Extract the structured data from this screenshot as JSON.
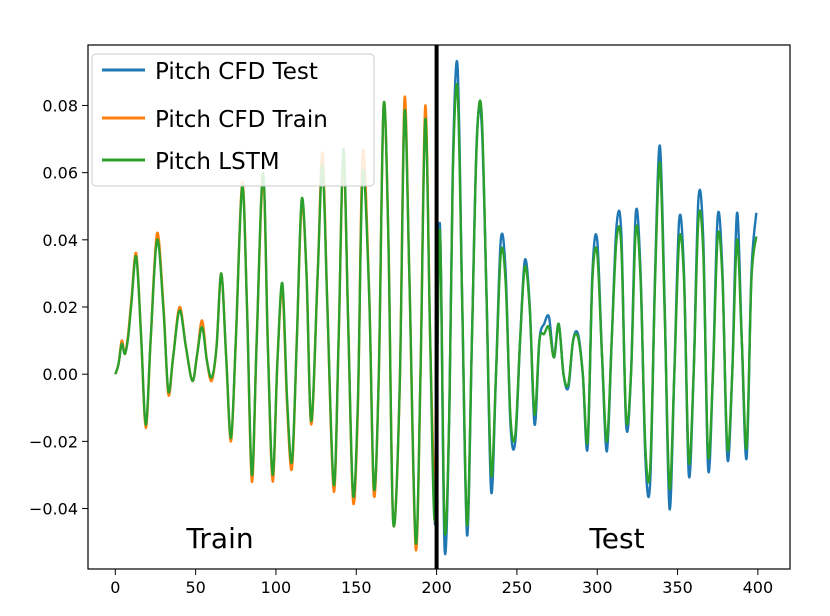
{
  "chart_data": {
    "type": "line",
    "title": "",
    "xlabel": "",
    "ylabel": "",
    "xlim": [
      -17,
      420
    ],
    "ylim": [
      -0.058,
      0.098
    ],
    "x_ticks": [
      0,
      50,
      100,
      150,
      200,
      250,
      300,
      350,
      400
    ],
    "y_ticks": [
      -0.04,
      -0.02,
      0.0,
      0.02,
      0.04,
      0.06,
      0.08
    ],
    "x_tick_labels": [
      "0",
      "50",
      "100",
      "150",
      "200",
      "250",
      "300",
      "350",
      "400"
    ],
    "y_tick_labels": [
      "−0.04",
      "−0.02",
      "0.00",
      "0.02",
      "0.04",
      "0.06",
      "0.08"
    ],
    "split_x": 200,
    "region_labels": {
      "train": "Train",
      "test": "Test"
    },
    "legend": [
      "Pitch CFD Test",
      "Pitch CFD Train",
      "Pitch LSTM"
    ],
    "colors": {
      "test": "#1f77b4",
      "train": "#ff7f0e",
      "lstm": "#2ca02c",
      "split": "#000000"
    },
    "series": [
      {
        "name": "Pitch CFD Train",
        "key": "train",
        "x": [
          0,
          2,
          4,
          6,
          8,
          10,
          13,
          16,
          19,
          22,
          26,
          30,
          33,
          36,
          40,
          44,
          48,
          51,
          54,
          57,
          60,
          63,
          66,
          69,
          72,
          75,
          79,
          82,
          85,
          88,
          92,
          95,
          98,
          101,
          104,
          107,
          110,
          113,
          116,
          119,
          122,
          126,
          129,
          132,
          136,
          139,
          142,
          145,
          148,
          151,
          154,
          158,
          161,
          164,
          167,
          170,
          173,
          177,
          180,
          183,
          187,
          190,
          193,
          196,
          199
        ],
        "y": [
          0.0,
          0.003,
          0.01,
          0.006,
          0.012,
          0.022,
          0.036,
          0.012,
          -0.016,
          0.01,
          0.042,
          0.02,
          -0.006,
          0.005,
          0.02,
          0.008,
          -0.002,
          0.006,
          0.016,
          0.004,
          -0.002,
          0.008,
          0.03,
          0.005,
          -0.02,
          0.01,
          0.057,
          0.02,
          -0.032,
          0.01,
          0.058,
          0.008,
          -0.032,
          0.005,
          0.025,
          -0.01,
          -0.028,
          0.01,
          0.05,
          0.03,
          -0.015,
          0.03,
          0.066,
          0.02,
          -0.035,
          0.01,
          0.065,
          0.015,
          -0.038,
          -0.01,
          0.066,
          0.025,
          -0.036,
          0.0,
          0.08,
          0.04,
          -0.044,
          -0.005,
          0.082,
          0.03,
          -0.052,
          0.0,
          0.08,
          0.01,
          -0.045
        ]
      },
      {
        "name": "Pitch CFD Test",
        "key": "test",
        "x": [
          199,
          202,
          205,
          208,
          210,
          213,
          216,
          219,
          222,
          225,
          228,
          231,
          234,
          237,
          240,
          243,
          246,
          249,
          252,
          255,
          258,
          261,
          264,
          267,
          270,
          273,
          276,
          279,
          282,
          285,
          288,
          291,
          294,
          297,
          300,
          303,
          306,
          309,
          312,
          315,
          318,
          321,
          324,
          327,
          330,
          333,
          336,
          339,
          342,
          345,
          348,
          351,
          354,
          357,
          360,
          363,
          366,
          369,
          372,
          375,
          378,
          381,
          384,
          387,
          390,
          393,
          396,
          399
        ],
        "y": [
          -0.045,
          0.045,
          -0.052,
          -0.01,
          0.06,
          0.092,
          0.02,
          -0.048,
          0.01,
          0.07,
          0.075,
          0.025,
          -0.035,
          0.0,
          0.04,
          0.03,
          -0.015,
          -0.02,
          0.01,
          0.034,
          0.02,
          -0.015,
          0.01,
          0.015,
          0.017,
          0.005,
          0.015,
          0.0,
          -0.004,
          0.01,
          0.012,
          0.0,
          -0.022,
          0.03,
          0.04,
          0.005,
          -0.023,
          0.01,
          0.044,
          0.042,
          -0.015,
          0.0,
          0.048,
          0.03,
          -0.025,
          -0.032,
          0.03,
          0.068,
          0.02,
          -0.04,
          0.0,
          0.046,
          0.03,
          -0.03,
          0.0,
          0.052,
          0.04,
          -0.028,
          0.0,
          0.047,
          0.03,
          -0.025,
          0.0,
          0.048,
          0.01,
          -0.025,
          0.03,
          0.048
        ]
      },
      {
        "name": "Pitch LSTM",
        "key": "lstm",
        "x": [
          0,
          2,
          4,
          6,
          8,
          10,
          13,
          16,
          19,
          22,
          26,
          30,
          33,
          36,
          40,
          44,
          48,
          51,
          54,
          57,
          60,
          63,
          66,
          69,
          72,
          75,
          79,
          82,
          85,
          88,
          92,
          95,
          98,
          101,
          104,
          107,
          110,
          113,
          116,
          119,
          122,
          126,
          129,
          132,
          136,
          139,
          142,
          145,
          148,
          151,
          154,
          158,
          161,
          164,
          167,
          170,
          173,
          177,
          180,
          183,
          187,
          190,
          193,
          196,
          199,
          202,
          205,
          208,
          210,
          213,
          216,
          219,
          222,
          225,
          228,
          231,
          234,
          237,
          240,
          243,
          246,
          249,
          252,
          255,
          258,
          261,
          264,
          267,
          270,
          273,
          276,
          279,
          282,
          285,
          288,
          291,
          294,
          297,
          300,
          303,
          306,
          309,
          312,
          315,
          318,
          321,
          324,
          327,
          330,
          333,
          336,
          339,
          342,
          345,
          348,
          351,
          354,
          357,
          360,
          363,
          366,
          369,
          372,
          375,
          378,
          381,
          384,
          387,
          390,
          393,
          396,
          399
        ],
        "y": [
          0.0,
          0.003,
          0.009,
          0.006,
          0.011,
          0.021,
          0.035,
          0.012,
          -0.015,
          0.01,
          0.04,
          0.019,
          -0.005,
          0.005,
          0.019,
          0.008,
          -0.002,
          0.006,
          0.014,
          0.004,
          -0.001,
          0.008,
          0.03,
          0.005,
          -0.019,
          0.01,
          0.056,
          0.02,
          -0.03,
          0.01,
          0.06,
          0.008,
          -0.03,
          0.005,
          0.027,
          -0.008,
          -0.026,
          0.01,
          0.052,
          0.03,
          -0.014,
          0.03,
          0.062,
          0.02,
          -0.033,
          0.01,
          0.067,
          0.015,
          -0.036,
          -0.008,
          0.06,
          0.024,
          -0.034,
          0.0,
          0.08,
          0.04,
          -0.044,
          -0.005,
          0.078,
          0.03,
          -0.05,
          0.0,
          0.076,
          0.01,
          -0.043,
          0.043,
          -0.046,
          -0.01,
          0.058,
          0.085,
          0.02,
          -0.045,
          0.01,
          0.069,
          0.078,
          0.025,
          -0.03,
          0.0,
          0.036,
          0.027,
          -0.013,
          -0.018,
          0.01,
          0.032,
          0.019,
          -0.012,
          0.01,
          0.012,
          0.014,
          0.005,
          0.015,
          0.0,
          -0.003,
          0.01,
          0.011,
          0.0,
          -0.02,
          0.028,
          0.036,
          0.005,
          -0.02,
          0.01,
          0.04,
          0.038,
          -0.013,
          0.0,
          0.043,
          0.028,
          -0.022,
          -0.028,
          0.028,
          0.063,
          0.018,
          -0.034,
          0.0,
          0.04,
          0.028,
          -0.026,
          0.0,
          0.046,
          0.036,
          -0.024,
          0.0,
          0.041,
          0.028,
          -0.022,
          0.0,
          0.04,
          0.01,
          -0.022,
          0.028,
          0.041
        ]
      }
    ]
  }
}
